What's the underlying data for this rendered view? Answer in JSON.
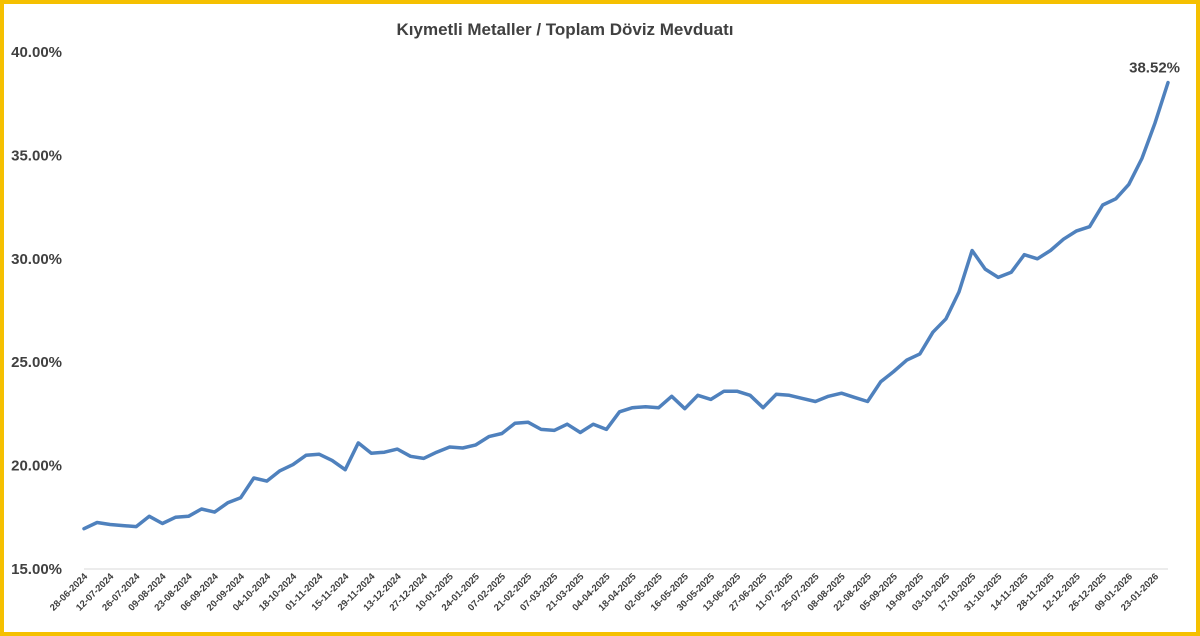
{
  "chart_data": {
    "type": "line",
    "title": "Kıymetli Metaller / Toplam Döviz Mevduatı",
    "xlabel": "",
    "ylabel": "",
    "ylim": [
      15,
      40
    ],
    "y_ticks": [
      "15.00%",
      "20.00%",
      "25.00%",
      "30.00%",
      "35.00%",
      "40.00%"
    ],
    "y_tick_values": [
      15,
      20,
      25,
      30,
      35,
      40
    ],
    "x_tick_labels": [
      "28-06-2024",
      "12-07-2024",
      "26-07-2024",
      "09-08-2024",
      "23-08-2024",
      "06-09-2024",
      "20-09-2024",
      "04-10-2024",
      "18-10-2024",
      "01-11-2024",
      "15-11-2024",
      "29-11-2024",
      "13-12-2024",
      "27-12-2024",
      "10-01-2025",
      "24-01-2025",
      "07-02-2025",
      "21-02-2025",
      "07-03-2025",
      "21-03-2025",
      "04-04-2025",
      "18-04-2025",
      "02-05-2025",
      "16-05-2025",
      "30-05-2025",
      "13-06-2025",
      "27-06-2025",
      "11-07-2025",
      "25-07-2025",
      "08-08-2025",
      "22-08-2025",
      "05-09-2025",
      "19-09-2025",
      "03-10-2025",
      "17-10-2025",
      "31-10-2025",
      "14-11-2025",
      "28-11-2025",
      "12-12-2025",
      "26-12-2025",
      "09-01-2026",
      "23-01-2026"
    ],
    "series": [
      {
        "color": "#4f81bd",
        "values": [
          16.95,
          17.25,
          17.15,
          17.1,
          17.05,
          17.55,
          17.2,
          17.5,
          17.55,
          17.9,
          17.75,
          18.2,
          18.45,
          19.4,
          19.25,
          19.75,
          20.05,
          20.5,
          20.55,
          20.25,
          19.8,
          21.1,
          20.6,
          20.65,
          20.8,
          20.45,
          20.35,
          20.65,
          20.9,
          20.85,
          21.0,
          21.4,
          21.55,
          22.05,
          22.1,
          21.75,
          21.7,
          22.0,
          21.6,
          22.0,
          21.75,
          22.6,
          22.8,
          22.85,
          22.8,
          23.35,
          22.75,
          23.4,
          23.2,
          23.6,
          23.6,
          23.4,
          22.8,
          23.45,
          23.4,
          23.25,
          23.1,
          23.35,
          23.5,
          23.3,
          23.1,
          24.05,
          24.55,
          25.1,
          25.4,
          26.45,
          27.1,
          28.4,
          30.4,
          29.5,
          29.1,
          29.35,
          30.2,
          30.0,
          30.4,
          30.95,
          31.35,
          31.55,
          32.6,
          32.9,
          33.6,
          34.85,
          36.55,
          38.52
        ]
      }
    ],
    "data_labels": [
      {
        "series": 0,
        "index": 83,
        "text": "38.52%"
      }
    ],
    "grid": false,
    "legend": "none"
  }
}
